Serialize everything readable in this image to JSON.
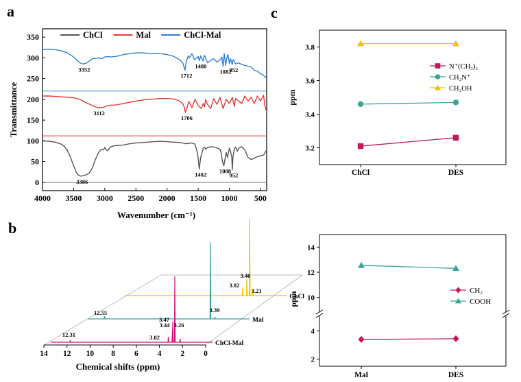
{
  "panel_labels": {
    "a": "a",
    "b": "b",
    "c": "c"
  },
  "chart_data": [
    {
      "id": "a",
      "type": "line",
      "title": "",
      "xlabel": "Wavenumber (cm⁻¹)",
      "ylabel": "Transmittance",
      "xlim": [
        4000,
        400
      ],
      "ylim": [
        -20,
        370
      ],
      "xticks": [
        4000,
        3500,
        3000,
        2500,
        2000,
        1500,
        1000,
        500
      ],
      "yticks": [
        0,
        50,
        100,
        150,
        200,
        250,
        300,
        350
      ],
      "legend": {
        "position": "top",
        "entries": [
          "ChCl",
          "Mal",
          "ChCl-Mal"
        ]
      },
      "series": [
        {
          "name": "ChCl",
          "color": "#555555",
          "baseline": 0,
          "x": [
            4000,
            3900,
            3800,
            3700,
            3650,
            3600,
            3550,
            3500,
            3450,
            3420,
            3386,
            3350,
            3300,
            3250,
            3200,
            3150,
            3100,
            3050,
            3020,
            3000,
            2960,
            2900,
            2850,
            2800,
            2700,
            2600,
            2500,
            2400,
            2300,
            2200,
            2100,
            2000,
            1900,
            1800,
            1750,
            1700,
            1650,
            1600,
            1550,
            1510,
            1482,
            1460,
            1420,
            1400,
            1380,
            1350,
            1300,
            1250,
            1200,
            1150,
            1130,
            1110,
            1088,
            1070,
            1050,
            1030,
            1000,
            980,
            960,
            952,
            940,
            920,
            900,
            870,
            850,
            800,
            750,
            700,
            650,
            600,
            550,
            500,
            450,
            400
          ],
          "y": [
            100,
            99,
            97,
            92,
            87,
            77,
            60,
            40,
            22,
            17,
            15,
            16,
            18,
            22,
            35,
            55,
            72,
            80,
            78,
            84,
            76,
            86,
            88,
            89,
            90,
            93,
            95,
            96,
            97,
            98,
            99,
            98,
            97,
            96,
            95,
            93,
            94,
            95,
            92,
            70,
            32,
            60,
            82,
            85,
            80,
            84,
            86,
            85,
            83,
            80,
            70,
            50,
            40,
            55,
            72,
            60,
            82,
            75,
            60,
            30,
            62,
            80,
            85,
            75,
            82,
            86,
            78,
            60,
            55,
            58,
            62,
            64,
            66,
            78
          ]
        },
        {
          "name": "Mal",
          "color": "#e53935",
          "baseline": 112,
          "x": [
            4000,
            3900,
            3800,
            3700,
            3600,
            3500,
            3400,
            3300,
            3200,
            3112,
            3050,
            3000,
            2950,
            2900,
            2850,
            2800,
            2700,
            2600,
            2500,
            2400,
            2300,
            2200,
            2100,
            2000,
            1900,
            1850,
            1800,
            1750,
            1720,
            1706,
            1690,
            1650,
            1600,
            1550,
            1500,
            1450,
            1420,
            1400,
            1380,
            1350,
            1300,
            1250,
            1200,
            1150,
            1100,
            1050,
            1000,
            950,
            920,
            900,
            850,
            800,
            750,
            700,
            650,
            600,
            550,
            500,
            450,
            430,
            410,
            400
          ],
          "y": [
            208,
            208,
            207,
            206,
            205,
            204,
            200,
            192,
            185,
            180,
            180,
            182,
            185,
            186,
            186,
            187,
            190,
            193,
            196,
            198,
            200,
            201,
            202,
            202,
            201,
            199,
            196,
            190,
            180,
            168,
            175,
            195,
            180,
            200,
            185,
            178,
            190,
            182,
            200,
            188,
            178,
            202,
            188,
            205,
            178,
            200,
            190,
            205,
            183,
            202,
            196,
            190,
            208,
            196,
            205,
            190,
            208,
            196,
            210,
            185,
            175,
            170
          ]
        },
        {
          "name": "ChCl-Mal",
          "color": "#2f80d1",
          "baseline": 220,
          "x": [
            4000,
            3900,
            3800,
            3700,
            3600,
            3500,
            3450,
            3400,
            3352,
            3300,
            3250,
            3200,
            3100,
            3050,
            3000,
            2950,
            2900,
            2800,
            2700,
            2600,
            2500,
            2400,
            2300,
            2200,
            2100,
            2000,
            1900,
            1850,
            1800,
            1760,
            1740,
            1712,
            1690,
            1660,
            1640,
            1600,
            1560,
            1520,
            1500,
            1480,
            1460,
            1440,
            1420,
            1400,
            1380,
            1350,
            1300,
            1250,
            1200,
            1150,
            1120,
            1100,
            1082,
            1060,
            1040,
            1020,
            1000,
            980,
            960,
            952,
            940,
            920,
            900,
            850,
            800,
            750,
            700,
            650,
            600,
            550,
            500,
            450,
            400
          ],
          "y": [
            320,
            321,
            320,
            317,
            312,
            302,
            295,
            288,
            285,
            287,
            292,
            298,
            300,
            298,
            302,
            303,
            302,
            304,
            308,
            310,
            312,
            312,
            311,
            310,
            310,
            308,
            304,
            300,
            296,
            290,
            285,
            270,
            290,
            305,
            300,
            310,
            296,
            300,
            303,
            293,
            305,
            298,
            292,
            306,
            300,
            288,
            294,
            298,
            290,
            295,
            302,
            280,
            310,
            282,
            300,
            308,
            286,
            298,
            288,
            284,
            296,
            292,
            285,
            288,
            284,
            282,
            280,
            278,
            270,
            268,
            262,
            258,
            250
          ]
        }
      ],
      "annotations": [
        {
          "text": "3352",
          "x": 3352,
          "y": 285
        },
        {
          "text": "1712",
          "x": 1712,
          "y": 270
        },
        {
          "text": "1480",
          "x": 1480,
          "y": 293
        },
        {
          "text": "1082",
          "x": 1082,
          "y": 280
        },
        {
          "text": "952",
          "x": 952,
          "y": 284
        },
        {
          "text": "3112",
          "x": 3112,
          "y": 180
        },
        {
          "text": "1706",
          "x": 1706,
          "y": 168
        },
        {
          "text": "3386",
          "x": 3386,
          "y": 15
        },
        {
          "text": "1482",
          "x": 1482,
          "y": 32
        },
        {
          "text": "1088",
          "x": 1088,
          "y": 40
        },
        {
          "text": "952",
          "x": 952,
          "y": 30
        }
      ]
    },
    {
      "id": "b",
      "type": "line",
      "title": "",
      "xlabel": "Chemical shifts (ppm)",
      "xlim": [
        14,
        0
      ],
      "xticks": [
        14,
        12,
        10,
        8,
        6,
        4,
        2,
        0
      ],
      "series": [
        {
          "name": "ChCl",
          "color": "#f4c200",
          "peaks": [
            {
              "ppm": 3.82,
              "h": 12
            },
            {
              "ppm": 3.46,
              "h": 24
            },
            {
              "ppm": 3.21,
              "h": 112
            },
            {
              "ppm": 2.95,
              "h": 10
            }
          ],
          "labels": [
            {
              "text": "3.46",
              "ppm": 3.46
            },
            {
              "text": "3.82",
              "ppm": 3.82
            },
            {
              "text": "3.21",
              "ppm": 3.21
            }
          ]
        },
        {
          "name": "Mal",
          "color": "#3aa59a",
          "peaks": [
            {
              "ppm": 12.55,
              "h": 4
            },
            {
              "ppm": 3.39,
              "h": 112
            },
            {
              "ppm": 3.0,
              "h": 3
            }
          ],
          "labels": [
            {
              "text": "12.55",
              "ppm": 12.55
            },
            {
              "text": "3.39",
              "ppm": 3.39
            }
          ]
        },
        {
          "name": "ChCl-Mal",
          "color": "#d4127c",
          "peaks": [
            {
              "ppm": 12.31,
              "h": 3
            },
            {
              "ppm": 3.82,
              "h": 8
            },
            {
              "ppm": 3.47,
              "h": 18
            },
            {
              "ppm": 3.44,
              "h": 30
            },
            {
              "ppm": 3.26,
              "h": 96
            },
            {
              "ppm": 2.8,
              "h": 5
            }
          ],
          "labels": [
            {
              "text": "12.31",
              "ppm": 12.31
            },
            {
              "text": "3.47",
              "ppm": 3.47
            },
            {
              "text": "3.44",
              "ppm": 3.44
            },
            {
              "text": "3.82",
              "ppm": 3.82
            },
            {
              "text": "3.26",
              "ppm": 3.26
            }
          ]
        }
      ]
    },
    {
      "id": "c-top",
      "type": "line",
      "ylabel": "ppm",
      "categories": [
        "ChCl",
        "DES"
      ],
      "ylim": [
        3.1,
        3.9
      ],
      "yticks": [
        3.2,
        3.4,
        3.6,
        3.8
      ],
      "legend": {
        "position": "right"
      },
      "series": [
        {
          "name": "N⁺(CH₃)₃",
          "color": "#c2185b",
          "marker": "square",
          "values": [
            3.21,
            3.26
          ]
        },
        {
          "name": "CH₂N⁺",
          "color": "#3aa59a",
          "marker": "circle",
          "values": [
            3.46,
            3.47
          ]
        },
        {
          "name": "CH₂OH",
          "color": "#f4c200",
          "marker": "triangle",
          "values": [
            3.82,
            3.82
          ]
        }
      ]
    },
    {
      "id": "c-bottom",
      "type": "line",
      "ylabel": "ppm",
      "categories": [
        "Mal",
        "DES"
      ],
      "ylim": [
        1.5,
        15
      ],
      "axis_break": [
        5,
        9
      ],
      "yticks": [
        2,
        4,
        10,
        12,
        14
      ],
      "legend": {
        "position": "right"
      },
      "series": [
        {
          "name": "CH₂",
          "color": "#c2185b",
          "marker": "diamond",
          "values": [
            3.4,
            3.45
          ]
        },
        {
          "name": "COOH",
          "color": "#3aa59a",
          "marker": "triangle",
          "values": [
            12.55,
            12.31
          ]
        }
      ]
    }
  ]
}
